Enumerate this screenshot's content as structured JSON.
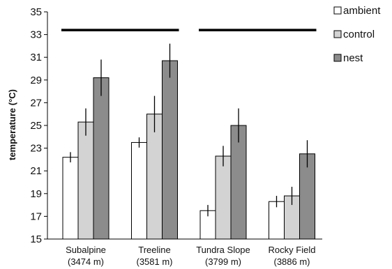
{
  "chart_data": {
    "type": "bar",
    "title": "",
    "xlabel": "",
    "ylabel": "temperature (°C)",
    "ylim": [
      15,
      35
    ],
    "yticks": [
      15,
      17,
      19,
      21,
      23,
      25,
      27,
      29,
      31,
      33,
      35
    ],
    "grid": false,
    "legend_position": "top-right",
    "categories": [
      {
        "name": "Subalpine",
        "elevation": "(3474 m)"
      },
      {
        "name": "Treeline",
        "elevation": "(3581 m)"
      },
      {
        "name": "Tundra Slope",
        "elevation": "(3799 m)"
      },
      {
        "name": "Rocky Field",
        "elevation": "(3886 m)"
      }
    ],
    "series": [
      {
        "name": "ambient",
        "color": "#ffffff",
        "values": [
          22.2,
          23.5,
          17.5,
          18.3
        ],
        "error": [
          0.45,
          0.45,
          0.5,
          0.5
        ]
      },
      {
        "name": "control",
        "color": "#d3d3d3",
        "values": [
          25.3,
          26.0,
          22.3,
          18.8
        ],
        "error": [
          1.2,
          1.6,
          0.9,
          0.8
        ]
      },
      {
        "name": "nest",
        "color": "#8c8c8c",
        "values": [
          29.2,
          30.7,
          25.0,
          22.5
        ],
        "error": [
          1.6,
          1.5,
          1.5,
          1.2
        ]
      }
    ],
    "annotations": [
      {
        "type": "horizontal-line",
        "y": 33.4,
        "spans_categories": [
          0,
          1
        ]
      },
      {
        "type": "horizontal-line",
        "y": 33.4,
        "spans_categories": [
          2,
          3
        ]
      }
    ]
  }
}
